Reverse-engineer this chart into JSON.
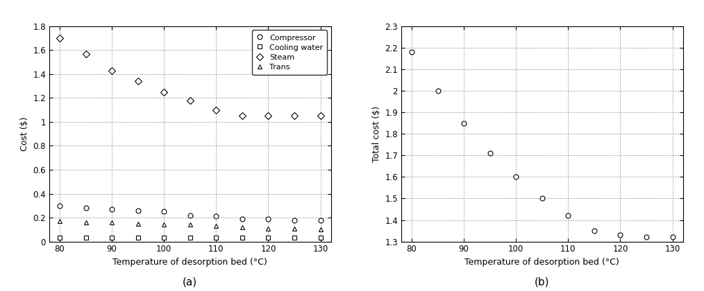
{
  "x_temps": [
    80,
    85,
    90,
    95,
    100,
    105,
    110,
    115,
    120,
    125,
    130
  ],
  "compressor": [
    0.3,
    0.28,
    0.27,
    0.26,
    0.25,
    0.22,
    0.21,
    0.19,
    0.19,
    0.18,
    0.18
  ],
  "cooling_water": [
    0.03,
    0.03,
    0.03,
    0.03,
    0.03,
    0.03,
    0.03,
    0.03,
    0.03,
    0.03,
    0.03
  ],
  "steam": [
    1.7,
    1.57,
    1.43,
    1.34,
    1.25,
    1.18,
    1.1,
    1.05,
    1.05,
    1.05,
    1.05
  ],
  "trans": [
    0.17,
    0.16,
    0.16,
    0.15,
    0.14,
    0.14,
    0.13,
    0.12,
    0.11,
    0.11,
    0.1
  ],
  "total_cost_x": [
    80,
    85,
    90,
    95,
    100,
    105,
    110,
    115,
    120,
    125,
    130
  ],
  "total_cost": [
    2.18,
    2.0,
    1.85,
    1.71,
    1.6,
    1.5,
    1.42,
    1.35,
    1.33,
    1.32,
    1.32
  ],
  "xlabel": "Temperature of desorption bed (°C)",
  "ylabel_a": "Cost ($)",
  "ylabel_b": "Total cost ($)",
  "label_a": "(a)",
  "label_b": "(b)",
  "legend_compressor": "Compressor",
  "legend_cooling": "Cooling water",
  "legend_steam": "Steam",
  "legend_trans": "Trans",
  "xlim": [
    78,
    132
  ],
  "ylim_a": [
    0,
    1.8
  ],
  "ylim_b": [
    1.3,
    2.3
  ],
  "xticks": [
    80,
    90,
    100,
    110,
    120,
    130
  ],
  "yticks_a": [
    0,
    0.2,
    0.4,
    0.6,
    0.8,
    1.0,
    1.2,
    1.4,
    1.6,
    1.8
  ],
  "yticks_b": [
    1.3,
    1.4,
    1.5,
    1.6,
    1.7,
    1.8,
    1.9,
    2.0,
    2.1,
    2.2,
    2.3
  ]
}
